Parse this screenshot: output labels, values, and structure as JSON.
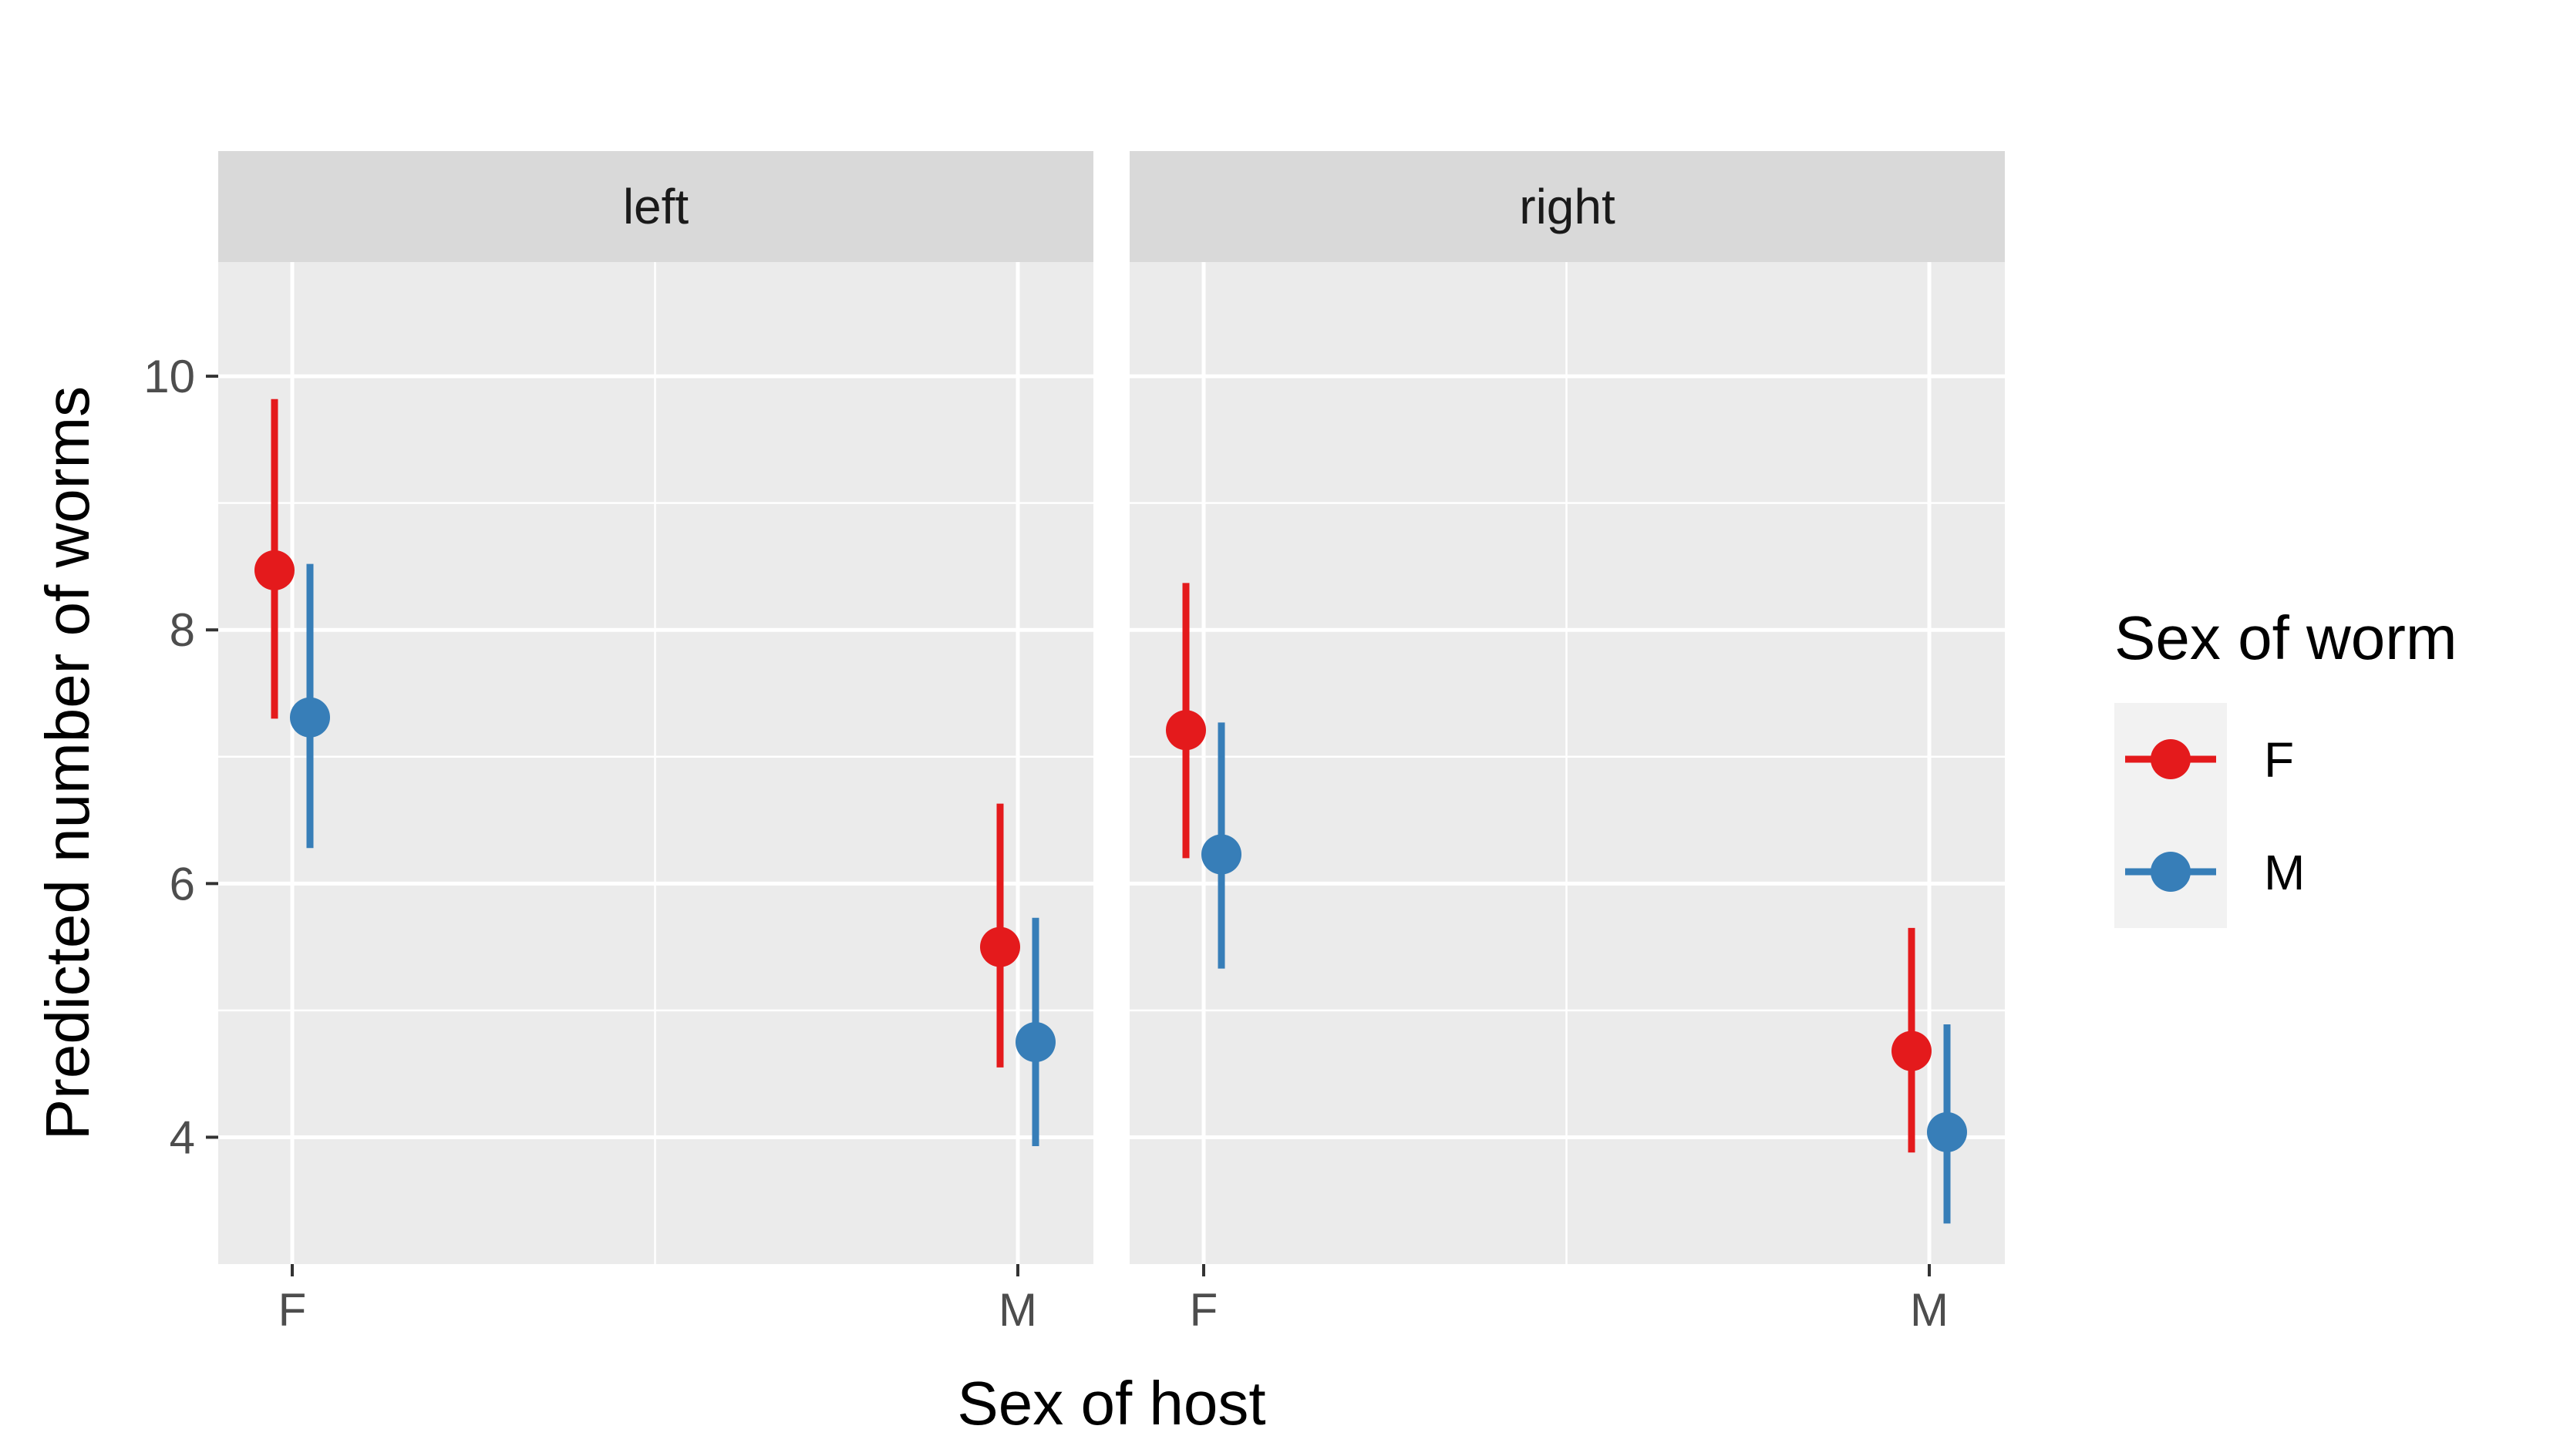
{
  "chart_data": {
    "type": "scatter",
    "subtype": "point-range, faceted",
    "title": "",
    "xlabel": "Sex of host",
    "ylabel": "Predicted number of worms",
    "ylim": [
      3,
      10.9
    ],
    "yticks": [
      4,
      6,
      8,
      10
    ],
    "grid": true,
    "facets": [
      "left",
      "right"
    ],
    "categories": [
      "F",
      "M"
    ],
    "legend": {
      "title": "Sex of worm",
      "placement": "right",
      "entries": [
        "F",
        "M"
      ]
    },
    "series": [
      {
        "name": "F",
        "color": "#e41a1c",
        "points": [
          {
            "facet": "left",
            "x": "F",
            "y": 8.47,
            "ymin": 7.3,
            "ymax": 9.82
          },
          {
            "facet": "left",
            "x": "M",
            "y": 5.5,
            "ymin": 4.55,
            "ymax": 6.63
          },
          {
            "facet": "right",
            "x": "F",
            "y": 7.21,
            "ymin": 6.2,
            "ymax": 8.37
          },
          {
            "facet": "right",
            "x": "M",
            "y": 4.68,
            "ymin": 3.88,
            "ymax": 5.65
          }
        ]
      },
      {
        "name": "M",
        "color": "#377eb8",
        "points": [
          {
            "facet": "left",
            "x": "F",
            "y": 7.31,
            "ymin": 6.28,
            "ymax": 8.52
          },
          {
            "facet": "left",
            "x": "M",
            "y": 4.75,
            "ymin": 3.93,
            "ymax": 5.73
          },
          {
            "facet": "right",
            "x": "F",
            "y": 6.23,
            "ymin": 5.33,
            "ymax": 7.27
          },
          {
            "facet": "right",
            "x": "M",
            "y": 4.04,
            "ymin": 3.32,
            "ymax": 4.89
          }
        ]
      }
    ]
  }
}
